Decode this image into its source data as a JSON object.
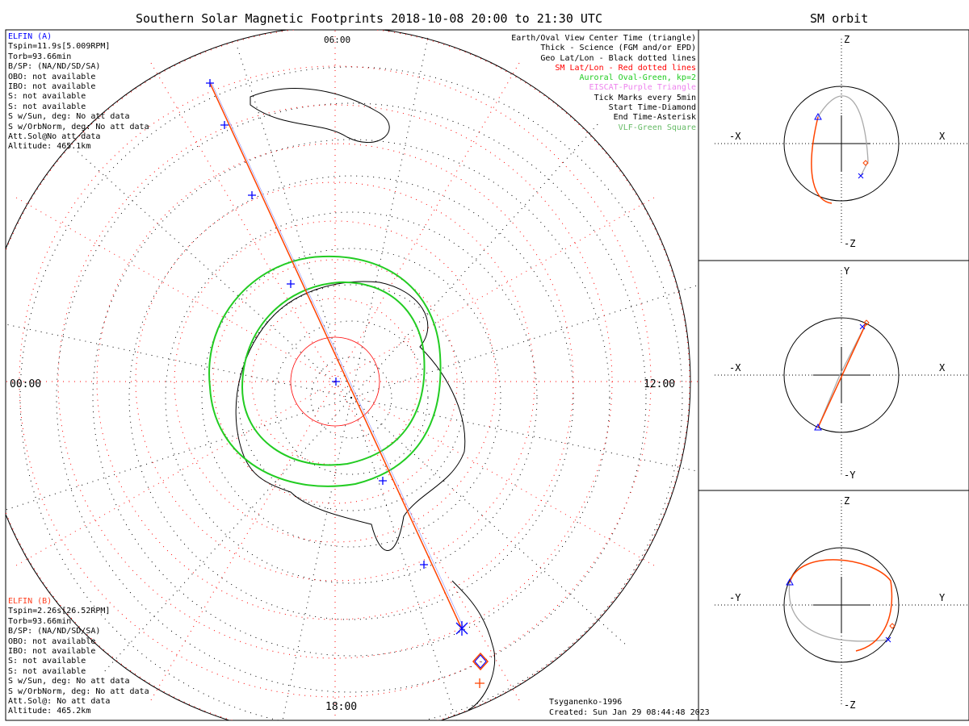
{
  "title": "Southern Solar Magnetic Footprints 2018-10-08 20:00 to 21:30 UTC",
  "orbit_title": "SM orbit",
  "elfin_a": {
    "name": "ELFIN (A)",
    "color": "#0000ff",
    "lines": [
      "Tspin=11.9s[5.009RPM]",
      "Torb=93.66min",
      "B/SP: (NA/ND/SD/SA)",
      "OBO: not available",
      "IBO: not available",
      "S: not available",
      "S: not available",
      "S w/Sun, deg: No att data",
      "S w/OrbNorm, deg: No att data",
      "Att.Sol@No att data",
      "Altitude: 465.1km"
    ]
  },
  "elfin_b": {
    "name": "ELFIN (B)",
    "color": "#ff4020",
    "lines": [
      "Tspin=2.26s[26.52RPM]",
      "Torb=93.66min",
      "B/SP: (NA/ND/SD/SA)",
      "OBO: not available",
      "IBO: not available",
      "S: not available",
      "S: not available",
      "S w/Sun, deg: No att data",
      "S w/OrbNorm, deg: No att data",
      "Att.Sol@: No att data",
      "Altitude: 465.2km"
    ]
  },
  "legend": [
    {
      "text": "Earth/Oval View Center Time (triangle)",
      "color": "#000000"
    },
    {
      "text": "Thick - Science (FGM and/or EPD)",
      "color": "#000000"
    },
    {
      "text": "Geo Lat/Lon - Black dotted lines",
      "color": "#000000"
    },
    {
      "text": "SM Lat/Lon - Red dotted lines",
      "color": "#ff0000"
    },
    {
      "text": "Auroral Oval-Green, kp=2",
      "color": "#22cc22"
    },
    {
      "text": "EISCAT-Purple Triangle",
      "color": "#ee82ee"
    },
    {
      "text": "Tick Marks every 5min",
      "color": "#000000"
    },
    {
      "text": "Start Time-Diamond",
      "color": "#000000"
    },
    {
      "text": "End Time-Asterisk",
      "color": "#000000"
    },
    {
      "text": "VLF-Green Square",
      "color": "#66bb66"
    }
  ],
  "map_labels": {
    "top": "06:00",
    "left": "00:00",
    "right": "12:00",
    "bottom": "18:00"
  },
  "footer": {
    "model": "Tsyganenko-1996",
    "created": "Created: Sun Jan 29 08:44:48 2023"
  },
  "orbit_panels": [
    {
      "up": "Z",
      "down": "-Z",
      "left": "-X",
      "right": "X"
    },
    {
      "up": "Y",
      "down": "-Y",
      "left": "-X",
      "right": "X"
    },
    {
      "up": "Z",
      "down": "-Z",
      "left": "-Y",
      "right": "Y"
    }
  ],
  "chart_data": {
    "type": "scatter",
    "title": "Southern Solar Magnetic Footprints 2018-10-08 20:00 to 21:30 UTC",
    "projection": "south polar",
    "mlt_labels": [
      "00:00",
      "06:00",
      "12:00",
      "18:00"
    ],
    "auroral_oval_kp": 2,
    "tick_interval_min": 5
  }
}
